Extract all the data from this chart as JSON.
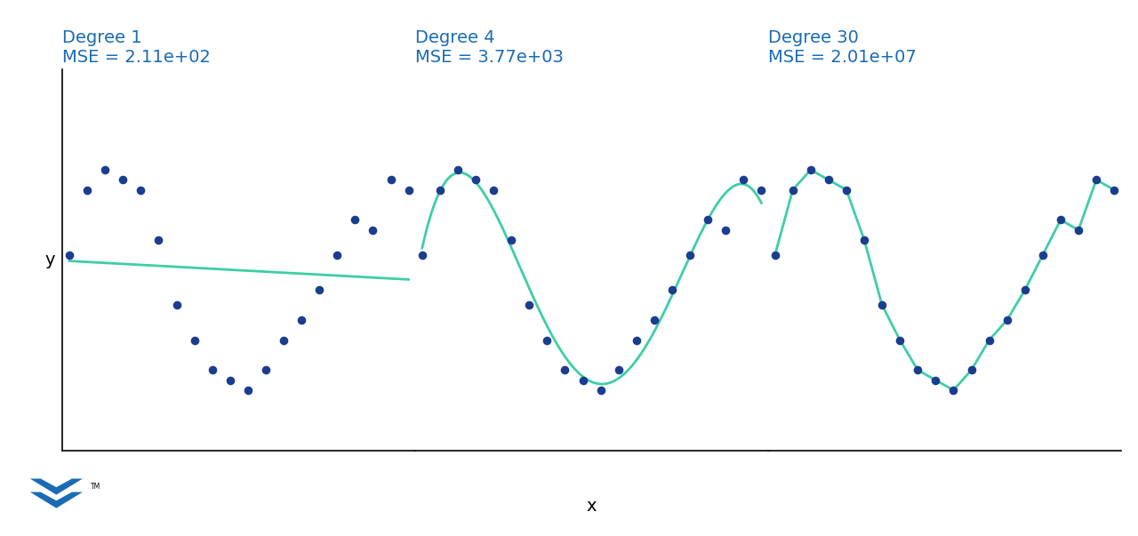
{
  "title1": "Degree 1",
  "title2": "Degree 4",
  "title3": "Degree 30",
  "mse1": "MSE = 2.11e+02",
  "mse2": "MSE = 3.77e+03",
  "mse3": "MSE = 2.01e+07",
  "xlabel": "x",
  "ylabel": "y",
  "title_color": "#1a6bb5",
  "dot_color": "#1a3d8f",
  "line_color": "#3dcea8",
  "background_color": "#ffffff",
  "dot_size": 35,
  "line_width": 2.0,
  "title_fontsize": 14,
  "label_fontsize": 14,
  "x_data": [
    0.0,
    0.526,
    1.053,
    1.579,
    2.105,
    2.632,
    3.158,
    3.684,
    4.211,
    4.737,
    5.263,
    5.789,
    6.316,
    6.842,
    7.368,
    7.895,
    8.421,
    8.947,
    9.474,
    10.0
  ],
  "y_data": [
    5,
    18,
    22,
    20,
    18,
    8,
    -5,
    -12,
    -18,
    -20,
    -22,
    -18,
    -12,
    -8,
    -2,
    5,
    12,
    10,
    20,
    18
  ]
}
